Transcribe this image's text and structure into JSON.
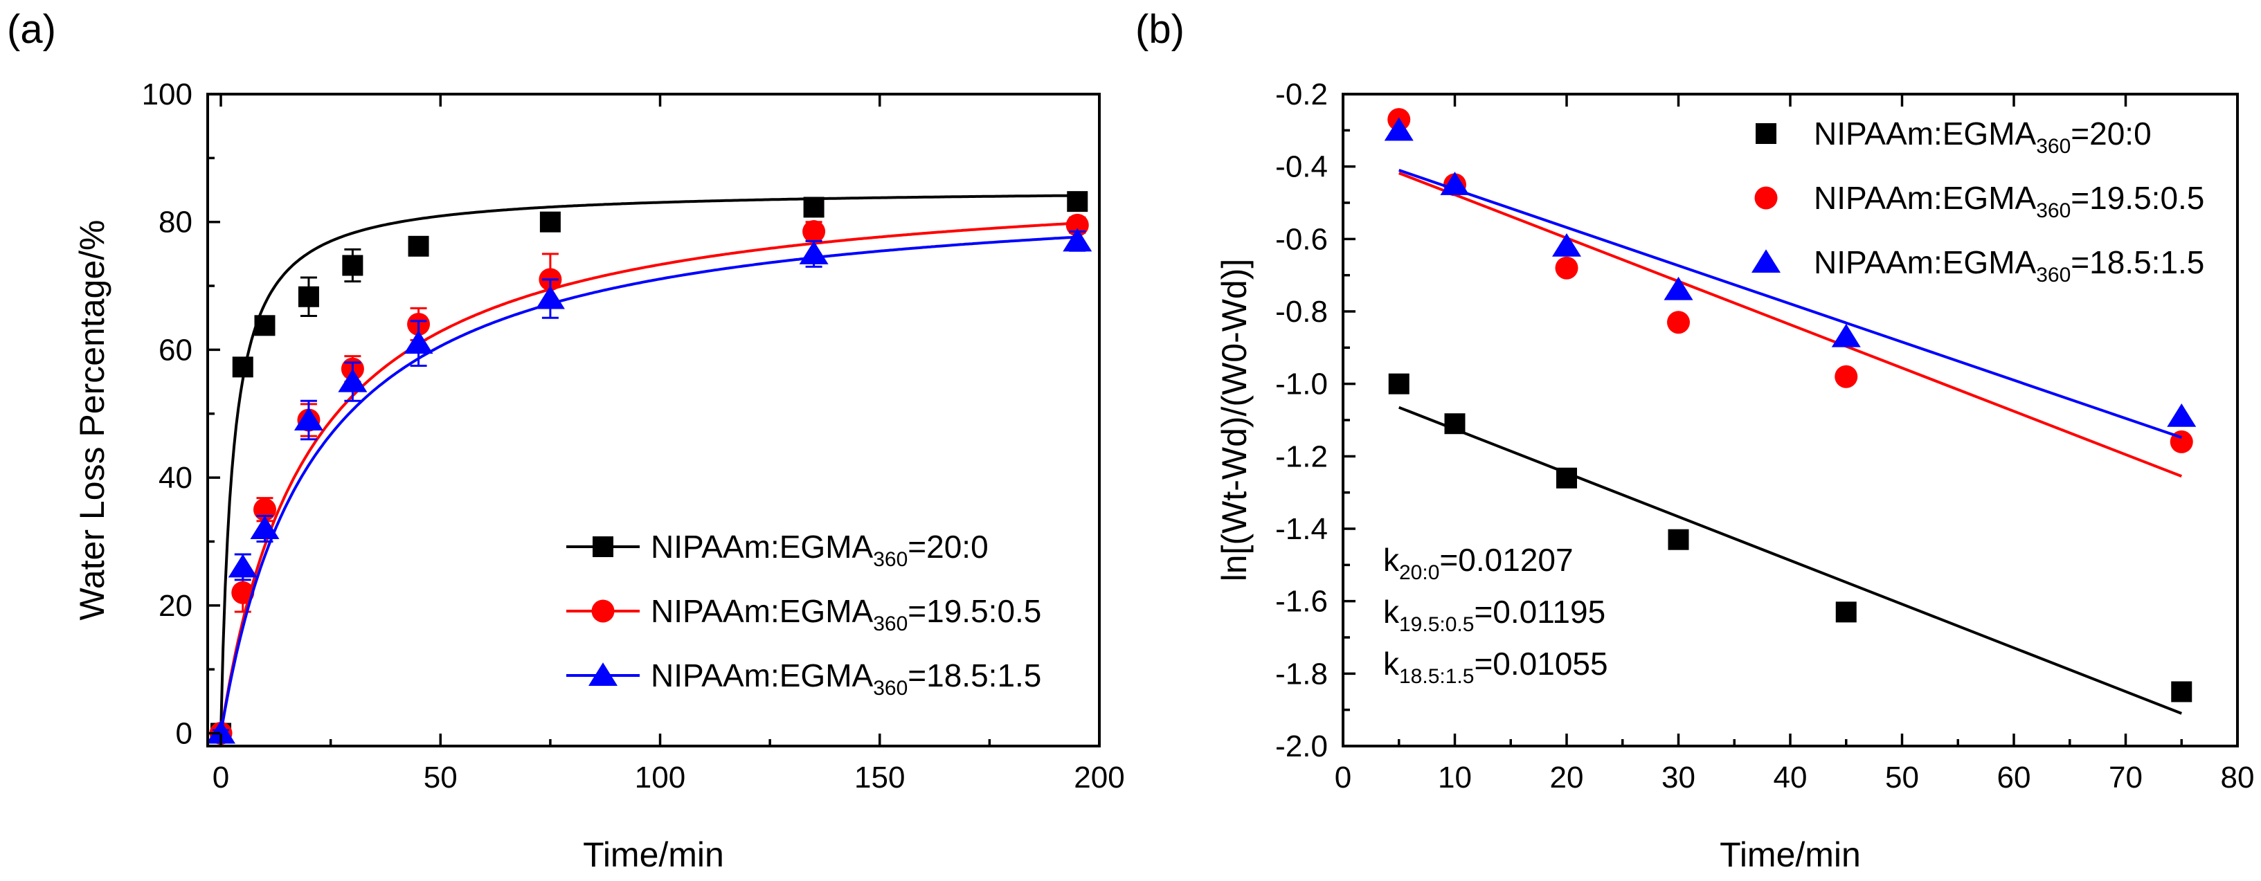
{
  "chart_data": [
    {
      "type": "line",
      "panel": "(a)",
      "xlabel": "Time/min",
      "ylabel": "Water Loss Percentage/%",
      "xlim": [
        -3,
        200
      ],
      "ylim": [
        -2,
        100
      ],
      "xticks": [
        0,
        50,
        100,
        150,
        200
      ],
      "yticks": [
        0,
        20,
        40,
        60,
        80,
        100
      ],
      "legend": "bottom-right",
      "series": [
        {
          "name": "NIPAAm:EGMA",
          "sub": "360",
          "ratio": "=20:0",
          "color": "#000000",
          "marker": "square",
          "x": [
            0,
            5,
            10,
            20,
            30,
            45,
            75,
            135,
            195
          ],
          "y": [
            0,
            57.3,
            63.8,
            68.3,
            73.2,
            76.2,
            80.0,
            82.3,
            83.2
          ],
          "err": [
            0.5,
            1.0,
            1.2,
            3.0,
            2.5,
            1.2,
            1.0,
            1.2,
            1.0
          ],
          "fit": {
            "type": "hyperbolic",
            "a": 85.3,
            "b": 2.7
          }
        },
        {
          "name": "NIPAAm:EGMA",
          "sub": "360",
          "ratio": "=19.5:0.5",
          "color": "#ff0000",
          "marker": "circle",
          "x": [
            0,
            5,
            10,
            20,
            30,
            45,
            75,
            135,
            195
          ],
          "y": [
            0,
            22.0,
            35.0,
            49.0,
            57.0,
            64.0,
            71.0,
            78.5,
            79.5
          ],
          "err": [
            0.5,
            3.0,
            1.8,
            2.5,
            2.0,
            2.5,
            4.0,
            1.5,
            1.2
          ],
          "fit": {
            "type": "hyperbolic",
            "a": 88.0,
            "b": 20.0
          }
        },
        {
          "name": "NIPAAm:EGMA",
          "sub": "360",
          "ratio": "=18.5:1.5",
          "color": "#0000ff",
          "marker": "triangle",
          "x": [
            0,
            5,
            10,
            20,
            30,
            45,
            75,
            135,
            195
          ],
          "y": [
            0,
            26.0,
            32.0,
            49.0,
            55.0,
            61.0,
            68.0,
            75.0,
            77.0
          ],
          "err": [
            0.5,
            2.0,
            2.0,
            3.0,
            3.0,
            3.5,
            3.0,
            2.0,
            1.5
          ],
          "fit": {
            "type": "hyperbolic",
            "a": 86.0,
            "b": 21.0
          }
        }
      ]
    },
    {
      "type": "scatter",
      "panel": "(b)",
      "xlabel": "Time/min",
      "ylabel": "ln[(Wt-Wd)/(W0-Wd)]",
      "xlim": [
        0,
        80
      ],
      "ylim": [
        -2.0,
        -0.2
      ],
      "xticks": [
        0,
        10,
        20,
        30,
        40,
        50,
        60,
        70,
        80
      ],
      "yticks": [
        -2.0,
        -1.8,
        -1.6,
        -1.4,
        -1.2,
        -1.0,
        -0.8,
        -0.6,
        -0.4,
        -0.2
      ],
      "legend": "top-right",
      "series": [
        {
          "name": "NIPAAm:EGMA",
          "sub": "360",
          "ratio": "=20:0",
          "color": "#000000",
          "marker": "square",
          "x": [
            5,
            10,
            20,
            30,
            45,
            75
          ],
          "y": [
            -1.0,
            -1.11,
            -1.26,
            -1.43,
            -1.63,
            -1.85
          ],
          "fit_line": {
            "x": [
              5,
              75
            ],
            "y": [
              -1.065,
              -1.91
            ]
          }
        },
        {
          "name": "NIPAAm:EGMA",
          "sub": "360",
          "ratio": "=19.5:0.5",
          "color": "#ff0000",
          "marker": "circle",
          "x": [
            5,
            10,
            20,
            30,
            45,
            75
          ],
          "y": [
            -0.27,
            -0.45,
            -0.68,
            -0.83,
            -0.98,
            -1.16
          ],
          "fit_line": {
            "x": [
              5,
              75
            ],
            "y": [
              -0.418,
              -1.255
            ]
          }
        },
        {
          "name": "NIPAAm:EGMA",
          "sub": "360",
          "ratio": "=18.5:1.5",
          "color": "#0000ff",
          "marker": "triangle",
          "x": [
            5,
            10,
            20,
            30,
            45,
            75
          ],
          "y": [
            -0.3,
            -0.45,
            -0.62,
            -0.74,
            -0.87,
            -1.09
          ],
          "fit_line": {
            "x": [
              5,
              75
            ],
            "y": [
              -0.41,
              -1.148
            ]
          }
        }
      ],
      "annotations": [
        {
          "prefix": "k",
          "sub": "20:0",
          "value": "=0.01207"
        },
        {
          "prefix": "k",
          "sub": "19.5:0.5",
          "value": "=0.01195"
        },
        {
          "prefix": "k",
          "sub": "18.5:1.5",
          "value": "=0.01055"
        }
      ]
    }
  ]
}
